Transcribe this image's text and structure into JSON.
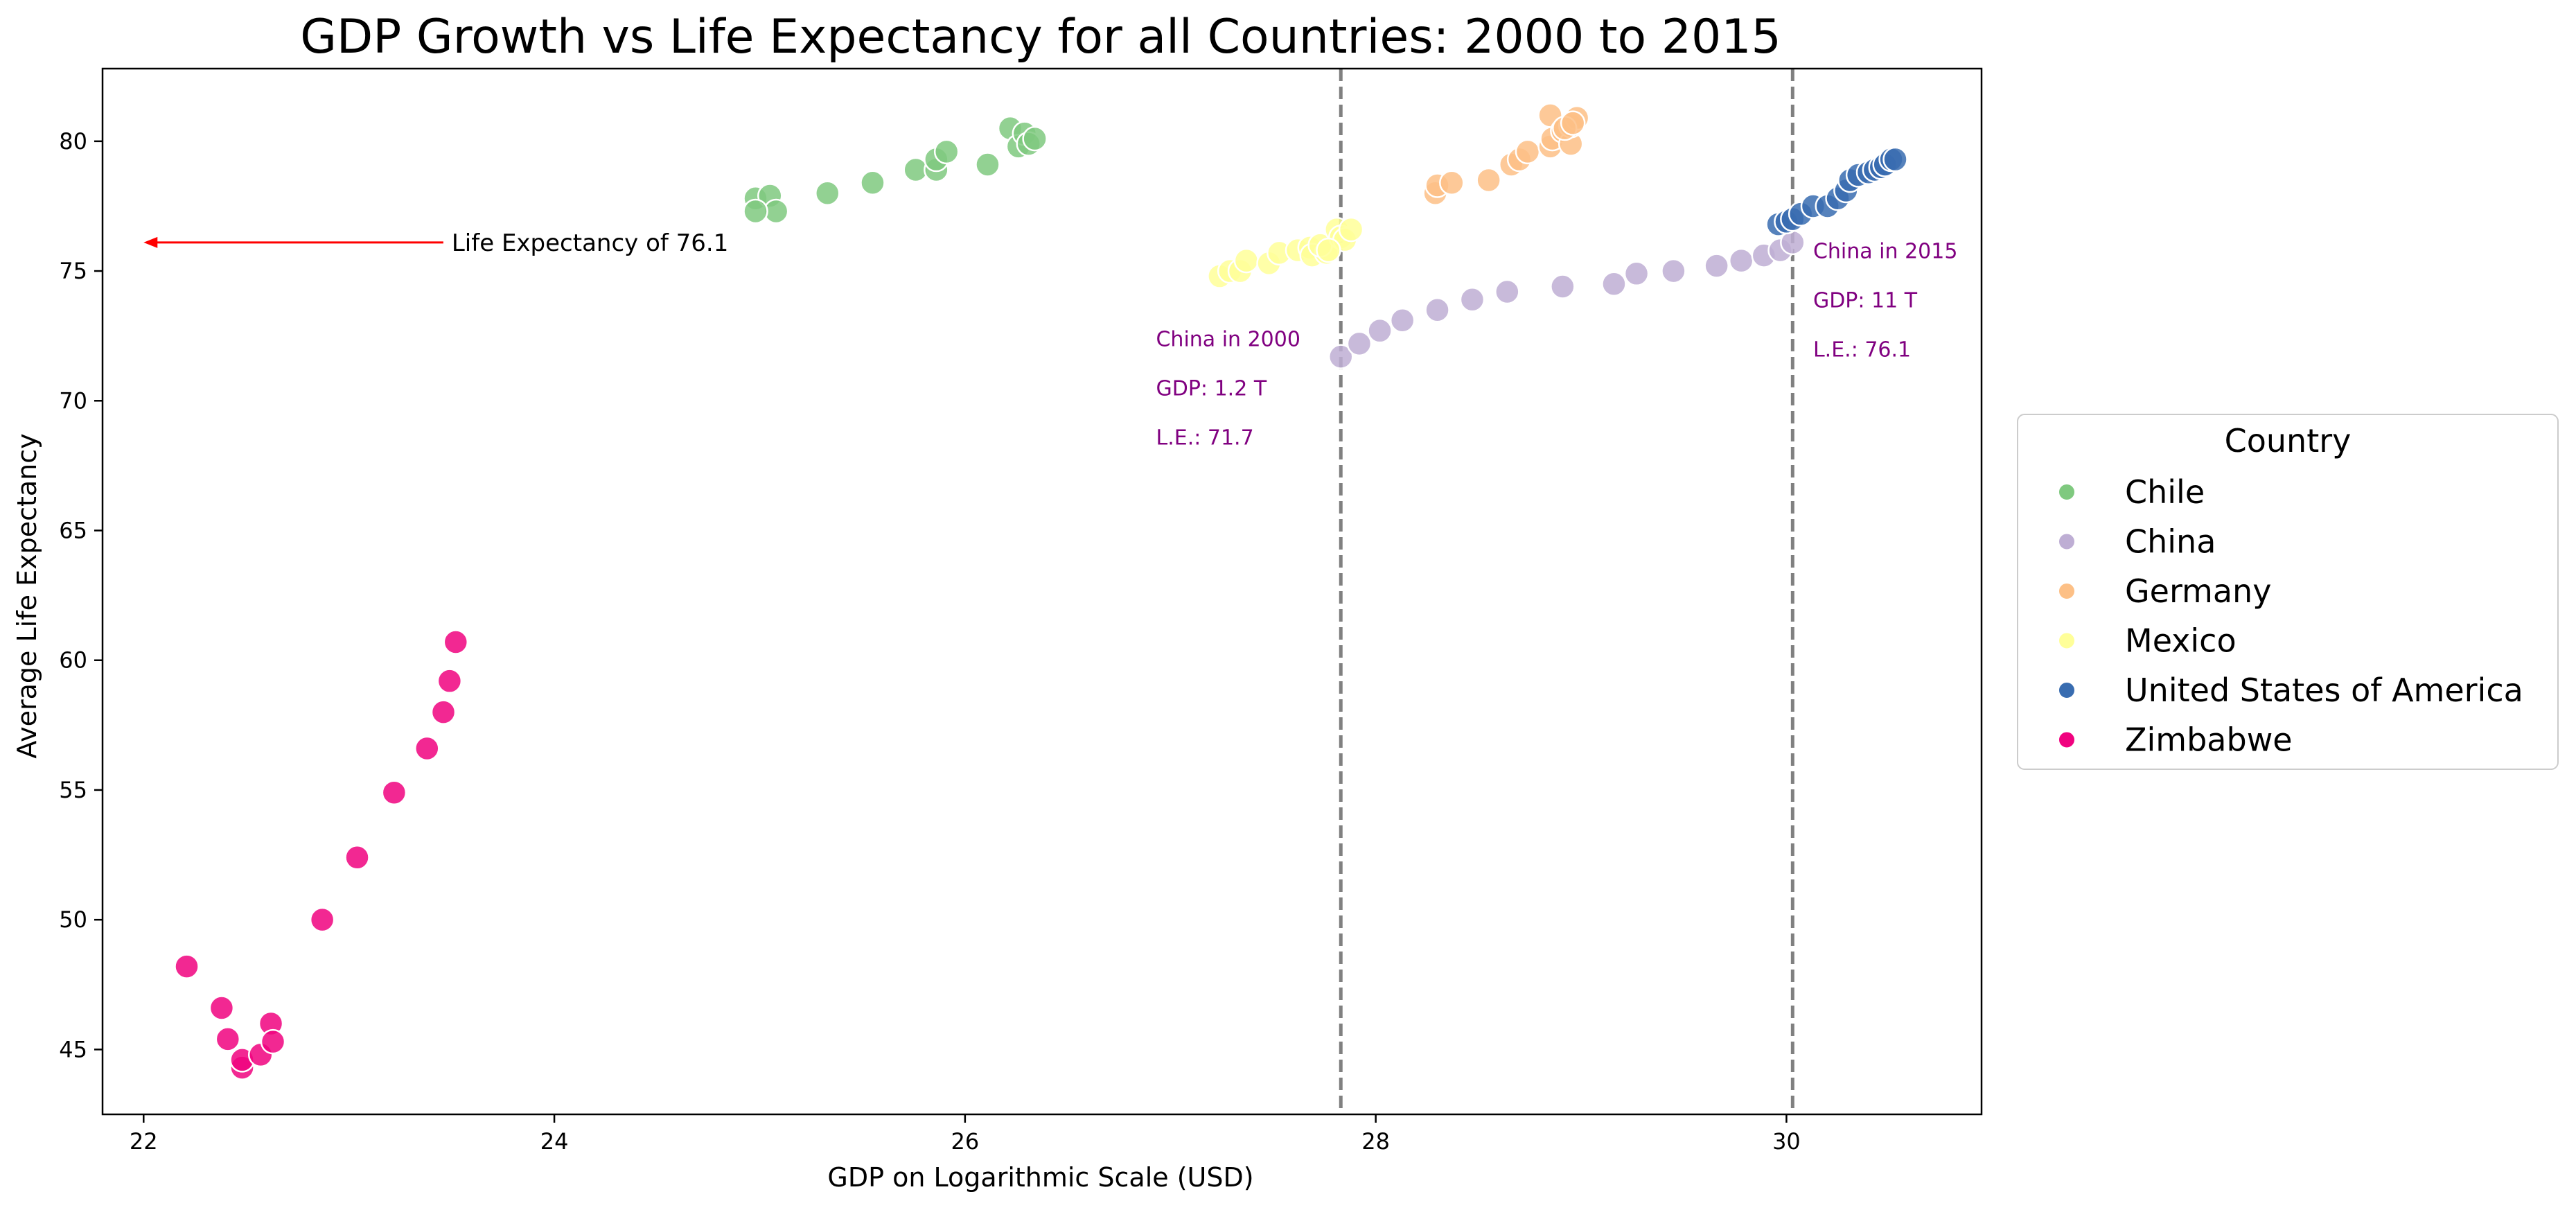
{
  "chart_data": {
    "type": "scatter",
    "title": "GDP Growth vs Life Expectancy for all Countries: 2000 to 2015",
    "xlabel": "GDP on Logarithmic Scale (USD)",
    "ylabel": "Average Life Expectancy",
    "xlim": [
      21.8,
      30.95
    ],
    "ylim": [
      42.5,
      82.8
    ],
    "x_ticks": [
      22,
      24,
      26,
      28,
      30
    ],
    "y_ticks": [
      45,
      50,
      55,
      60,
      65,
      70,
      75,
      80
    ],
    "x_tick_labels": [
      "22",
      "24",
      "26",
      "28",
      "30"
    ],
    "y_tick_labels": [
      "45",
      "50",
      "55",
      "60",
      "65",
      "70",
      "75",
      "80"
    ],
    "grid": false,
    "legend": {
      "title": "Country",
      "placement": "right-outside"
    },
    "series": [
      {
        "name": "Chile",
        "color": "#7fc97f",
        "points": [
          [
            24.98,
            77.8
          ],
          [
            25.05,
            77.9
          ],
          [
            25.08,
            77.3
          ],
          [
            24.98,
            77.3
          ],
          [
            25.33,
            78.0
          ],
          [
            25.55,
            78.4
          ],
          [
            25.76,
            78.9
          ],
          [
            25.86,
            78.9
          ],
          [
            25.86,
            79.3
          ],
          [
            25.91,
            79.6
          ],
          [
            26.11,
            79.1
          ],
          [
            26.22,
            80.5
          ],
          [
            26.26,
            79.8
          ],
          [
            26.29,
            80.3
          ],
          [
            26.31,
            79.9
          ],
          [
            26.34,
            80.1
          ]
        ]
      },
      {
        "name": "China",
        "color": "#beaed4",
        "points": [
          [
            27.83,
            71.7
          ],
          [
            27.92,
            72.2
          ],
          [
            28.02,
            72.7
          ],
          [
            28.13,
            73.1
          ],
          [
            28.3,
            73.5
          ],
          [
            28.47,
            73.9
          ],
          [
            28.64,
            74.2
          ],
          [
            28.91,
            74.4
          ],
          [
            29.16,
            74.5
          ],
          [
            29.27,
            74.9
          ],
          [
            29.45,
            75.0
          ],
          [
            29.66,
            75.2
          ],
          [
            29.78,
            75.4
          ],
          [
            29.89,
            75.6
          ],
          [
            29.97,
            75.8
          ],
          [
            30.03,
            76.1
          ]
        ]
      },
      {
        "name": "Germany",
        "color": "#fdc086",
        "points": [
          [
            28.29,
            78.0
          ],
          [
            28.3,
            78.3
          ],
          [
            28.37,
            78.4
          ],
          [
            28.55,
            78.5
          ],
          [
            28.66,
            79.1
          ],
          [
            28.7,
            79.3
          ],
          [
            28.74,
            79.6
          ],
          [
            28.85,
            79.8
          ],
          [
            28.86,
            80.1
          ],
          [
            28.85,
            81.0
          ],
          [
            28.91,
            80.4
          ],
          [
            28.95,
            79.9
          ],
          [
            28.95,
            80.6
          ],
          [
            28.98,
            80.9
          ],
          [
            28.92,
            80.5
          ],
          [
            28.96,
            80.7
          ]
        ]
      },
      {
        "name": "Mexico",
        "color": "#ffff99",
        "points": [
          [
            27.24,
            74.8
          ],
          [
            27.29,
            75.0
          ],
          [
            27.34,
            75.0
          ],
          [
            27.37,
            75.4
          ],
          [
            27.48,
            75.3
          ],
          [
            27.53,
            75.7
          ],
          [
            27.62,
            75.8
          ],
          [
            27.68,
            75.9
          ],
          [
            27.69,
            75.6
          ],
          [
            27.76,
            75.7
          ],
          [
            27.73,
            76.0
          ],
          [
            27.81,
            76.6
          ],
          [
            27.83,
            76.3
          ],
          [
            27.85,
            76.2
          ],
          [
            27.88,
            76.6
          ],
          [
            27.77,
            75.8
          ]
        ]
      },
      {
        "name": "United States of America",
        "color": "#386cb0",
        "points": [
          [
            29.96,
            76.8
          ],
          [
            30.0,
            76.9
          ],
          [
            30.03,
            77.0
          ],
          [
            30.07,
            77.2
          ],
          [
            30.13,
            77.5
          ],
          [
            30.2,
            77.5
          ],
          [
            30.25,
            77.8
          ],
          [
            30.29,
            78.1
          ],
          [
            30.31,
            78.5
          ],
          [
            30.35,
            78.7
          ],
          [
            30.4,
            78.8
          ],
          [
            30.43,
            78.9
          ],
          [
            30.46,
            79.0
          ],
          [
            30.48,
            79.1
          ],
          [
            30.51,
            79.3
          ],
          [
            30.53,
            79.3
          ]
        ]
      },
      {
        "name": "Zimbabwe",
        "color": "#f0027f",
        "points": [
          [
            22.21,
            48.2
          ],
          [
            22.38,
            46.6
          ],
          [
            22.41,
            45.4
          ],
          [
            22.48,
            44.3
          ],
          [
            22.48,
            44.6
          ],
          [
            22.57,
            44.8
          ],
          [
            22.62,
            46.0
          ],
          [
            22.63,
            45.3
          ],
          [
            22.87,
            50.0
          ],
          [
            23.04,
            52.4
          ],
          [
            23.22,
            54.9
          ],
          [
            23.38,
            56.6
          ],
          [
            23.46,
            58.0
          ],
          [
            23.49,
            59.2
          ],
          [
            23.52,
            60.7
          ]
        ]
      }
    ],
    "vlines": [
      {
        "x": 27.83,
        "style": "dashed",
        "color": "#808080"
      },
      {
        "x": 30.03,
        "style": "dashed",
        "color": "#808080"
      }
    ],
    "annotations": [
      {
        "lines": [
          "China in 2000",
          "GDP: 1.2 T",
          "L.E.: 71.7"
        ],
        "x": 26.93,
        "y": 72.1,
        "color": "#800080"
      },
      {
        "lines": [
          "China in 2015",
          "GDP: 11 T",
          "L.E.: 76.1"
        ],
        "x": 30.13,
        "y": 75.5,
        "color": "#800080"
      }
    ],
    "arrow": {
      "text": "Life Expectancy of 76.1",
      "text_x": 23.5,
      "text_y": 76.1,
      "to_x": 22.0,
      "to_y": 76.1,
      "color": "#ff0000"
    }
  }
}
